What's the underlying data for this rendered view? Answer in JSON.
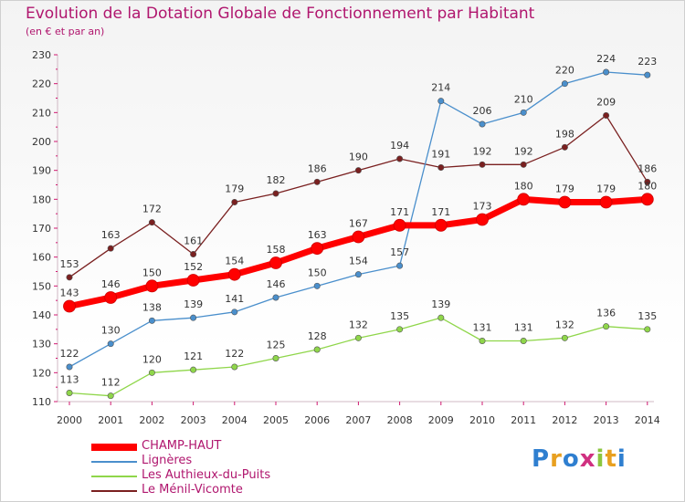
{
  "chart_data": {
    "type": "line",
    "title": "Evolution de la Dotation Globale de Fonctionnement par Habitant",
    "subtitle": "(en € et par an)",
    "categories": [
      "2000",
      "2001",
      "2002",
      "2003",
      "2004",
      "2005",
      "2006",
      "2007",
      "2008",
      "2009",
      "2010",
      "2011",
      "2012",
      "2013",
      "2014"
    ],
    "ylim": [
      110,
      230
    ],
    "yticks": [
      110,
      120,
      130,
      140,
      150,
      160,
      170,
      180,
      190,
      200,
      210,
      220,
      230
    ],
    "grid": false,
    "legend_position": "bottom-left",
    "series": [
      {
        "name": "CHAMP-HAUT",
        "color": "#ff0000",
        "values": [
          143,
          146,
          150,
          152,
          154,
          158,
          163,
          167,
          171,
          171,
          173,
          180,
          179,
          179,
          180
        ]
      },
      {
        "name": "Lignères",
        "color": "#4a8fcc",
        "values": [
          122,
          130,
          138,
          139,
          141,
          146,
          150,
          154,
          157,
          214,
          206,
          210,
          220,
          224,
          223
        ]
      },
      {
        "name": "Les Authieux-du-Puits",
        "color": "#8fd64a",
        "values": [
          113,
          112,
          120,
          121,
          122,
          125,
          128,
          132,
          135,
          139,
          131,
          131,
          132,
          136,
          135
        ]
      },
      {
        "name": "Le Ménil-Vicomte",
        "color": "#7a2020",
        "values": [
          153,
          163,
          172,
          161,
          179,
          182,
          186,
          190,
          194,
          191,
          192,
          192,
          198,
          209,
          186
        ]
      }
    ]
  },
  "logo": {
    "text": "Proxiti"
  }
}
